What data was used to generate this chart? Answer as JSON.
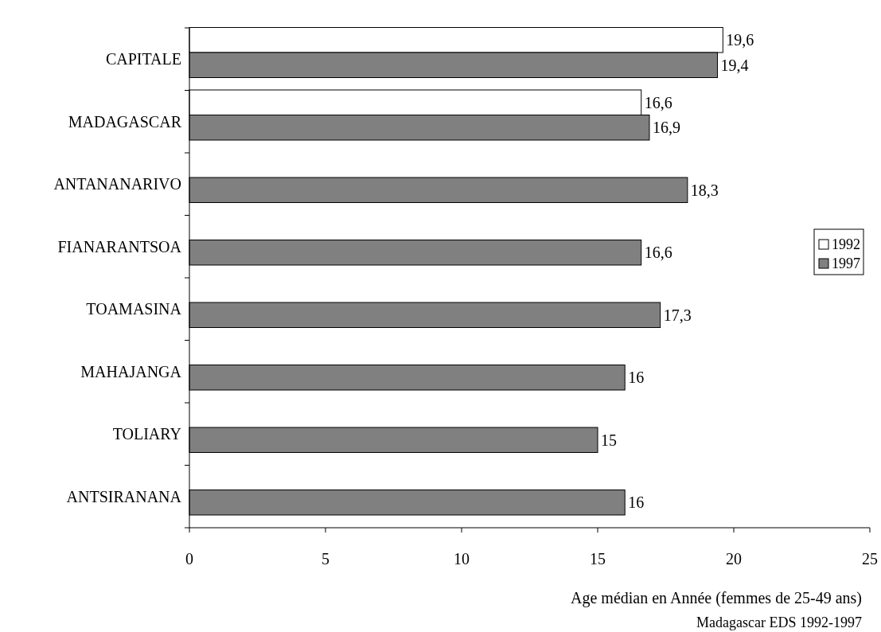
{
  "chart_data": {
    "type": "bar",
    "orientation": "horizontal",
    "categories": [
      "CAPITALE",
      "MADAGASCAR",
      "ANTANANARIVO",
      "FIANARANTSOA",
      "TOAMASINA",
      "MAHAJANGA",
      "TOLIARY",
      "ANTSIRANANA"
    ],
    "series": [
      {
        "name": "1992",
        "color": "#ffffff",
        "values": [
          19.6,
          16.6,
          null,
          null,
          null,
          null,
          null,
          null
        ],
        "value_labels": [
          "19,6",
          "16,6",
          null,
          null,
          null,
          null,
          null,
          null
        ]
      },
      {
        "name": "1997",
        "color": "#808080",
        "values": [
          19.4,
          16.9,
          18.3,
          16.6,
          17.3,
          16,
          15,
          16
        ],
        "value_labels": [
          "19,4",
          "16,9",
          "18,3",
          "16,6",
          "17,3",
          "16",
          "15",
          "16"
        ]
      }
    ],
    "xlim": [
      0,
      25
    ],
    "xticks": [
      0,
      5,
      10,
      15,
      20,
      25
    ],
    "xlabel": "Age médian en Année (femmes de 25-49 ans)",
    "annotations": [
      "Madagascar EDS 1992-1997"
    ],
    "legend": "right",
    "grid": false
  }
}
